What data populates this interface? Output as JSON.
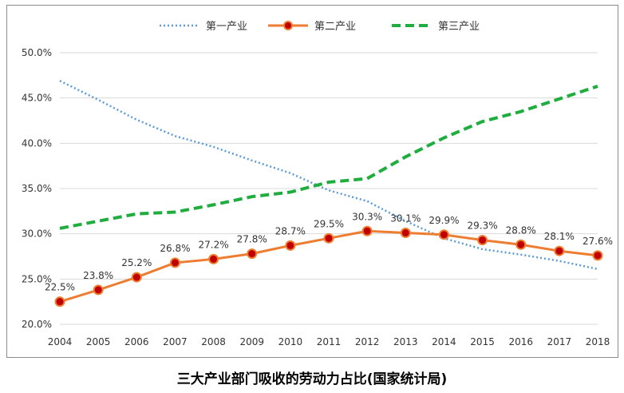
{
  "chart_data": {
    "type": "line",
    "title": "三大产业部门吸收的劳动力占比(国家统计局)",
    "categories": [
      "2004",
      "2005",
      "2006",
      "2007",
      "2008",
      "2009",
      "2010",
      "2011",
      "2012",
      "2013",
      "2014",
      "2015",
      "2016",
      "2017",
      "2018"
    ],
    "ylim": [
      0.2,
      0.5
    ],
    "yticks": [
      "20.0%",
      "25.0%",
      "30.0%",
      "35.0%",
      "40.0%",
      "45.0%",
      "50.0%"
    ],
    "ytick_values": [
      0.2,
      0.25,
      0.3,
      0.35,
      0.4,
      0.45,
      0.5
    ],
    "grid": true,
    "legend_position": "top",
    "series": [
      {
        "name": "第一产业",
        "style": "dotted",
        "color": "#5b9bd5",
        "values": [
          0.469,
          0.448,
          0.426,
          0.408,
          0.396,
          0.381,
          0.367,
          0.348,
          0.336,
          0.314,
          0.295,
          0.283,
          0.277,
          0.27,
          0.261
        ]
      },
      {
        "name": "第二产业",
        "style": "solid-markers",
        "color": "#ed7d31",
        "marker_color": "#c00000",
        "values": [
          0.225,
          0.238,
          0.252,
          0.268,
          0.272,
          0.278,
          0.287,
          0.295,
          0.303,
          0.301,
          0.299,
          0.293,
          0.288,
          0.281,
          0.276
        ],
        "labels": [
          "22.5%",
          "23.8%",
          "25.2%",
          "26.8%",
          "27.2%",
          "27.8%",
          "28.7%",
          "29.5%",
          "30.3%",
          "30.1%",
          "29.9%",
          "29.3%",
          "28.8%",
          "28.1%",
          "27.6%"
        ]
      },
      {
        "name": "第三产业",
        "style": "dashed",
        "color": "#1fae3e",
        "values": [
          0.306,
          0.314,
          0.322,
          0.324,
          0.332,
          0.341,
          0.346,
          0.357,
          0.361,
          0.385,
          0.406,
          0.424,
          0.435,
          0.449,
          0.463
        ]
      }
    ]
  }
}
